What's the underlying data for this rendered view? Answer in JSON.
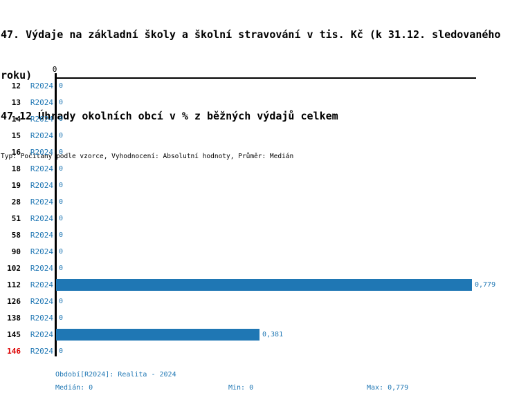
{
  "header": {
    "title_lines": [
      "47. Výdaje na základní školy a školní stravování v tis. Kč (k 31.12. sledovaného",
      "roku)"
    ],
    "subtitle": "47.12 Úhrady okolních obcí v % z běžných výdajů celkem",
    "meta": "Typ: Počítaný podle vzorce, Vyhodnocení: Absolutní hodnoty, Průměr: Medián"
  },
  "colors": {
    "bar_blue": "#1f77b4",
    "text_blue": "#1f77b4",
    "highlight_red": "#dd0000",
    "axis_black": "#000000"
  },
  "chart_data": {
    "type": "bar",
    "orientation": "horizontal",
    "title": "47. Výdaje na základní školy a školní stravování v tis. Kč (k 31.12. sledovaného roku)",
    "subtitle": "47.12 Úhrady okolních obcí v % z běžných výdajů celkem",
    "series_name": "R2024",
    "categories": [
      "12",
      "13",
      "14",
      "15",
      "16",
      "18",
      "19",
      "28",
      "51",
      "58",
      "90",
      "102",
      "112",
      "126",
      "138",
      "145",
      "146"
    ],
    "values": [
      0,
      0,
      0,
      0,
      0,
      0,
      0,
      0,
      0,
      0,
      0,
      0,
      0.779,
      0,
      0,
      0.381,
      0
    ],
    "value_labels": [
      "0",
      "0",
      "0",
      "0",
      "0",
      "0",
      "0",
      "0",
      "0",
      "0",
      "0",
      "0",
      "0,779",
      "0",
      "0",
      "0,381",
      "0"
    ],
    "xlim": [
      0,
      0.779
    ],
    "axis_top_label": "0",
    "grid": false,
    "legend": "none",
    "highlighted_category": "146",
    "stats": {
      "median": 0,
      "min": 0,
      "max": 0.779
    }
  },
  "footer": {
    "period_label": "Období[R2024]: Realita - 2024",
    "median_label": "Medián: 0",
    "min_label": "Min: 0",
    "max_label": "Max: 0,779"
  }
}
